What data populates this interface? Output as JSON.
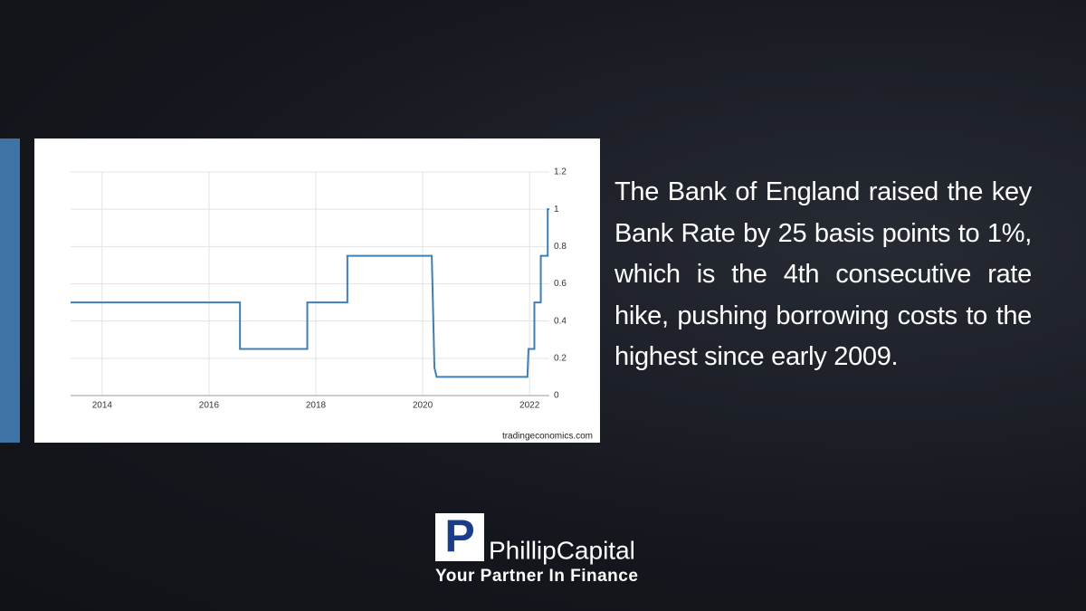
{
  "chart_data": {
    "type": "line",
    "x": [
      2013.41,
      2016.58,
      2016.58,
      2017.84,
      2017.84,
      2018.59,
      2018.59,
      2020.17,
      2020.22,
      2020.26,
      2021.96,
      2021.98,
      2022.09,
      2022.09,
      2022.21,
      2022.21,
      2022.34,
      2022.34,
      2022.37
    ],
    "values": [
      0.5,
      0.5,
      0.25,
      0.25,
      0.5,
      0.5,
      0.75,
      0.75,
      0.15,
      0.1,
      0.1,
      0.25,
      0.25,
      0.5,
      0.5,
      0.75,
      0.75,
      1,
      1
    ],
    "color": "#3f7fb5",
    "xlim": [
      2013.41,
      2022.37
    ],
    "xticks": [
      2014,
      2016,
      2018,
      2020,
      2022
    ],
    "ylim": [
      0,
      1.2
    ],
    "yticks": [
      0,
      0.2,
      0.4,
      0.6,
      0.8,
      1,
      1.2
    ],
    "grid": true,
    "source": "tradingeconomics.com"
  },
  "text": "The Bank of England raised the key Bank Rate by 25 basis points to 1%, which is the 4th consecutive rate hike, pushing borrowing costs to the highest since early 2009.",
  "logo": {
    "letter": "P",
    "name": "PhillipCapital",
    "tagline": "Your Partner In Finance"
  }
}
